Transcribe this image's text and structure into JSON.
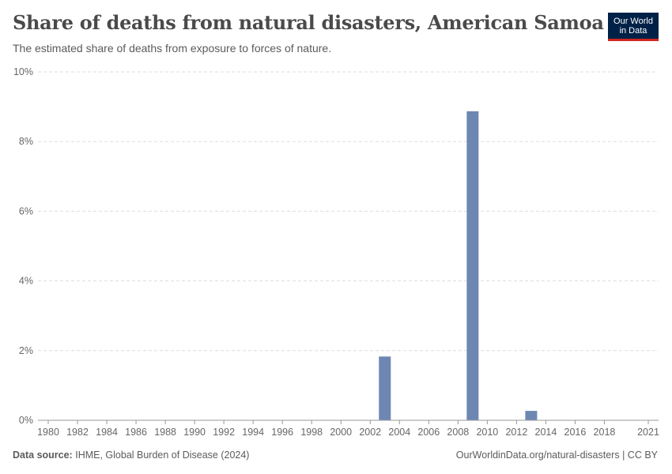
{
  "header": {
    "title": "Share of deaths from natural disasters, American Samoa",
    "subtitle": "The estimated share of deaths from exposure to forces of nature."
  },
  "logo": {
    "line1": "Our World",
    "line2": "in Data"
  },
  "footer": {
    "source_label": "Data source:",
    "source_value": "IHME, Global Burden of Disease (2024)",
    "url": "OurWorldinData.org/natural-disasters | CC BY"
  },
  "chart_data": {
    "type": "bar",
    "title": "Share of deaths from natural disasters, American Samoa",
    "xlabel": "",
    "ylabel": "",
    "unit": "%",
    "ylim": [
      0,
      10
    ],
    "y_ticks": [
      0,
      2,
      4,
      6,
      8,
      10
    ],
    "y_tick_labels": [
      "0%",
      "2%",
      "4%",
      "6%",
      "8%",
      "10%"
    ],
    "x_range": [
      1980,
      2021
    ],
    "x_ticks": [
      1980,
      1982,
      1984,
      1986,
      1988,
      1990,
      1992,
      1994,
      1996,
      1998,
      2000,
      2002,
      2004,
      2006,
      2008,
      2010,
      2012,
      2014,
      2016,
      2018,
      2021
    ],
    "x_tick_labels": [
      "1980",
      "1982",
      "1984",
      "1986",
      "1988",
      "1990",
      "1992",
      "1994",
      "1996",
      "1998",
      "2000",
      "2002",
      "2004",
      "2006",
      "2008",
      "2010",
      "2012",
      "2014",
      "2016",
      "2018",
      "2021"
    ],
    "grid": true,
    "series": [
      {
        "name": "Share of deaths from natural disasters",
        "color": "#6d87b2",
        "x": [
          1980,
          1981,
          1982,
          1983,
          1984,
          1985,
          1986,
          1987,
          1988,
          1989,
          1990,
          1991,
          1992,
          1993,
          1994,
          1995,
          1996,
          1997,
          1998,
          1999,
          2000,
          2001,
          2002,
          2003,
          2004,
          2005,
          2006,
          2007,
          2008,
          2009,
          2010,
          2011,
          2012,
          2013,
          2014,
          2015,
          2016,
          2017,
          2018,
          2019,
          2020,
          2021
        ],
        "values": [
          0,
          0,
          0,
          0,
          0,
          0,
          0,
          0,
          0,
          0,
          0,
          0,
          0,
          0,
          0,
          0,
          0,
          0,
          0,
          0,
          0,
          0,
          0,
          1.83,
          0,
          0,
          0,
          0,
          0,
          8.87,
          0,
          0,
          0,
          0.27,
          0,
          0,
          0,
          0,
          0,
          0,
          0,
          0
        ]
      }
    ]
  }
}
